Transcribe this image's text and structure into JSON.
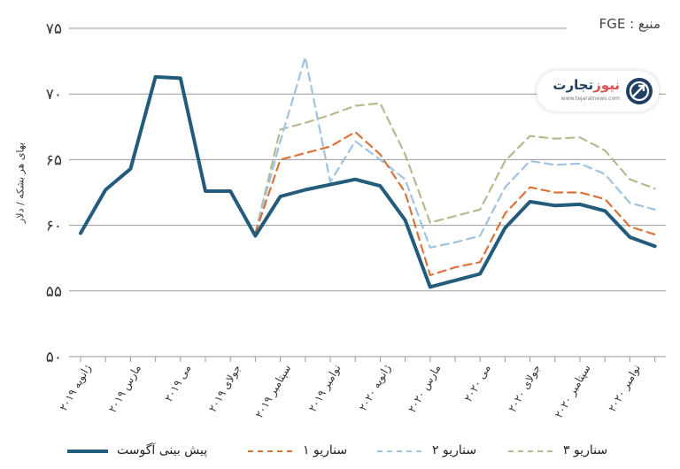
{
  "source": "منبع : FGE",
  "logo": {
    "brand_main": "تجارت",
    "brand_accent": "نیوز",
    "url": "www.tejaratnews.com"
  },
  "colors": {
    "forecast_aug": "#225b7c",
    "scenario1": "#d9733b",
    "scenario2": "#9fc3e0",
    "scenario3": "#b9b98f",
    "grid": "#999999"
  },
  "legend": {
    "forecast_aug": "پیش بینی آگوست",
    "scenario1": "سناریو ۱",
    "scenario2": "سناریو ۲",
    "scenario3": "سناریو ۳"
  },
  "chart_data": {
    "type": "line",
    "ylabel": "بهای هر بشکه / دلار",
    "ylim": [
      50,
      75
    ],
    "yticks": [
      50,
      55,
      60,
      65,
      70,
      75
    ],
    "ytick_labels": [
      "۵۰",
      "۵۵",
      "۶۰",
      "۶۵",
      "۷۰",
      "۷۵"
    ],
    "x_tick_labels": [
      "ژانویه ۲۰۱۹",
      "مارس ۲۰۱۹",
      "می ۲۰۱۹",
      "جولای ۲۰۱۹",
      "سپتامبر ۲۰۱۹",
      "نوامبر ۲۰۱۹",
      "ژانویه ۲۰۲۰",
      "مارس ۲۰۲۰",
      "می ۲۰۲۰",
      "جولای ۲۰۲۰",
      "سپتامبر ۲۰۲۰",
      "نوامبر ۲۰۲۰"
    ],
    "grid": true,
    "series": [
      {
        "name": "پیش بینی آگوست",
        "key": "forecast_aug",
        "start": 0,
        "values": [
          59.4,
          62.7,
          64.3,
          71.3,
          71.2,
          62.6,
          62.6,
          59.2,
          62.2,
          62.7,
          63.1,
          63.5,
          63.0,
          60.4,
          55.3,
          55.8,
          56.3,
          59.8,
          61.8,
          61.5,
          61.6,
          61.1,
          59.1,
          58.4
        ]
      },
      {
        "name": "سناریو ۱",
        "key": "scenario1",
        "start": 7,
        "values": [
          59.4,
          65.0,
          65.5,
          66.0,
          67.1,
          65.4,
          62.5,
          56.2,
          56.8,
          57.2,
          60.9,
          62.9,
          62.5,
          62.5,
          62.0,
          59.9,
          59.3
        ]
      },
      {
        "name": "سناریو ۲",
        "key": "scenario2",
        "start": 7,
        "values": [
          59.4,
          66.4,
          72.8,
          63.3,
          66.4,
          65.0,
          63.5,
          58.3,
          58.7,
          59.2,
          62.9,
          64.9,
          64.6,
          64.7,
          63.9,
          61.7,
          61.2
        ]
      },
      {
        "name": "سناریو ۳",
        "key": "scenario3",
        "start": 7,
        "values": [
          59.4,
          67.3,
          67.8,
          68.4,
          69.1,
          69.3,
          65.4,
          60.2,
          60.7,
          61.2,
          64.9,
          66.8,
          66.6,
          66.7,
          65.7,
          63.5,
          62.8
        ]
      }
    ]
  }
}
